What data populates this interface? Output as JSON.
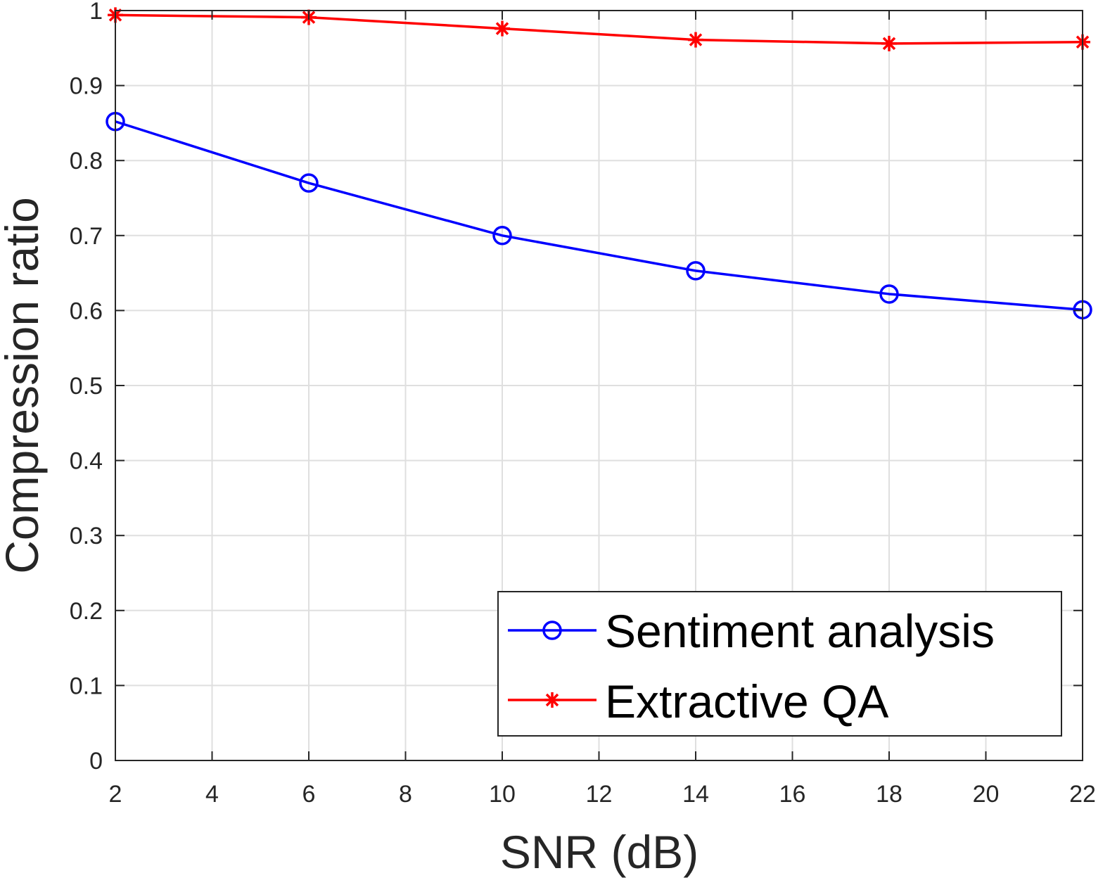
{
  "chart_data": {
    "type": "line",
    "title": "",
    "xlabel": "SNR (dB)",
    "ylabel": "Compression ratio",
    "xlim": [
      2,
      22
    ],
    "ylim": [
      0,
      1
    ],
    "xticks": [
      2,
      4,
      6,
      8,
      10,
      12,
      14,
      16,
      18,
      20,
      22
    ],
    "xtick_labels": [
      "2",
      "4",
      "6",
      "8",
      "10",
      "12",
      "14",
      "16",
      "18",
      "20",
      "22"
    ],
    "yticks": [
      0,
      0.1,
      0.2,
      0.3,
      0.4,
      0.5,
      0.6,
      0.7,
      0.8,
      0.9,
      1
    ],
    "ytick_labels": [
      "0",
      "0.1",
      "0.2",
      "0.3",
      "0.4",
      "0.5",
      "0.6",
      "0.7",
      "0.8",
      "0.9",
      "1"
    ],
    "grid": true,
    "legend_position": "bottom-right",
    "x": [
      2,
      6,
      10,
      14,
      18,
      22
    ],
    "series": [
      {
        "name": "Sentiment analysis",
        "color": "#0000ff",
        "marker": "circle",
        "values": [
          0.852,
          0.77,
          0.7,
          0.653,
          0.622,
          0.601
        ]
      },
      {
        "name": "Extractive QA",
        "color": "#ff0000",
        "marker": "asterisk",
        "values": [
          0.994,
          0.991,
          0.976,
          0.961,
          0.956,
          0.958
        ]
      }
    ]
  }
}
